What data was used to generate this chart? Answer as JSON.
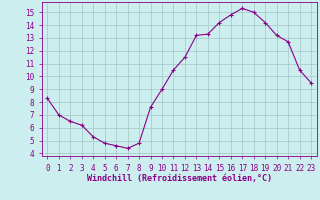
{
  "x": [
    0,
    1,
    2,
    3,
    4,
    5,
    6,
    7,
    8,
    9,
    10,
    11,
    12,
    13,
    14,
    15,
    16,
    17,
    18,
    19,
    20,
    21,
    22,
    23
  ],
  "y": [
    8.3,
    7.0,
    6.5,
    6.2,
    5.3,
    4.8,
    4.6,
    4.4,
    4.8,
    7.6,
    9.0,
    10.5,
    11.5,
    13.2,
    13.3,
    14.2,
    14.8,
    15.3,
    15.0,
    14.2,
    13.2,
    12.7,
    10.5,
    9.5
  ],
  "line_color": "#880088",
  "marker": "+",
  "bg_color": "#cceeee",
  "grid_color": "#aacccc",
  "xlabel": "Windchill (Refroidissement éolien,°C)",
  "xlabel_color": "#880088",
  "tick_color": "#880088",
  "spine_color": "#880088",
  "ylim": [
    3.8,
    15.8
  ],
  "xlim": [
    -0.5,
    23.5
  ],
  "yticks": [
    4,
    5,
    6,
    7,
    8,
    9,
    10,
    11,
    12,
    13,
    14,
    15
  ],
  "xticks": [
    0,
    1,
    2,
    3,
    4,
    5,
    6,
    7,
    8,
    9,
    10,
    11,
    12,
    13,
    14,
    15,
    16,
    17,
    18,
    19,
    20,
    21,
    22,
    23
  ],
  "font_family": "monospace",
  "tick_fontsize": 5.5,
  "xlabel_fontsize": 6.0
}
